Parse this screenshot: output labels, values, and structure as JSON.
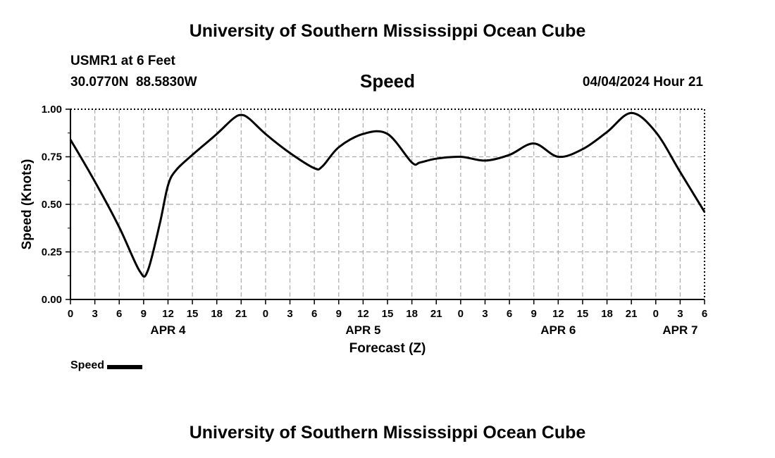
{
  "header": {
    "title": "University of Southern Mississippi Ocean Cube",
    "station": "USMR1 at 6 Feet",
    "coordinates": "30.0770N  88.5830W",
    "parameter": "Speed",
    "timestamp": "04/04/2024 Hour 21"
  },
  "footer": {
    "title": "University of Southern Mississippi Ocean Cube"
  },
  "legend": {
    "label": "Speed"
  },
  "chart_data": {
    "type": "line",
    "xlabel": "Forecast (Z)",
    "ylabel": "Speed (Knots)",
    "ylim": [
      0,
      1
    ],
    "xlim": [
      0,
      78
    ],
    "grid": true,
    "y_ticks": [
      "0.00",
      "0.25",
      "0.50",
      "0.75",
      "1.00"
    ],
    "x_ticks": [
      "0",
      "3",
      "6",
      "9",
      "12",
      "15",
      "18",
      "21",
      "0",
      "3",
      "6",
      "9",
      "12",
      "15",
      "18",
      "21",
      "0",
      "3",
      "6",
      "9",
      "12",
      "15",
      "18",
      "21",
      "0",
      "3",
      "6"
    ],
    "date_labels": [
      {
        "label": "APR 4",
        "hour": 12
      },
      {
        "label": "APR 5",
        "hour": 36
      },
      {
        "label": "APR 6",
        "hour": 60
      },
      {
        "label": "APR 7",
        "hour": 75
      }
    ],
    "colors": {
      "line": "#000000",
      "grid": "#aaaaaa"
    },
    "series": [
      {
        "name": "Speed",
        "x": [
          0,
          3,
          6,
          8.5,
          9.5,
          11,
          12,
          13,
          15,
          18,
          20,
          21,
          22,
          24,
          27,
          30,
          31,
          33,
          36,
          39,
          42,
          43,
          45,
          48,
          51,
          54,
          57,
          60,
          63,
          66,
          69,
          72,
          75,
          78
        ],
        "values": [
          0.84,
          0.62,
          0.38,
          0.15,
          0.15,
          0.4,
          0.6,
          0.68,
          0.76,
          0.87,
          0.95,
          0.97,
          0.95,
          0.87,
          0.77,
          0.69,
          0.7,
          0.8,
          0.87,
          0.87,
          0.72,
          0.72,
          0.74,
          0.75,
          0.73,
          0.76,
          0.82,
          0.75,
          0.79,
          0.88,
          0.98,
          0.88,
          0.67,
          0.46
        ]
      }
    ]
  }
}
